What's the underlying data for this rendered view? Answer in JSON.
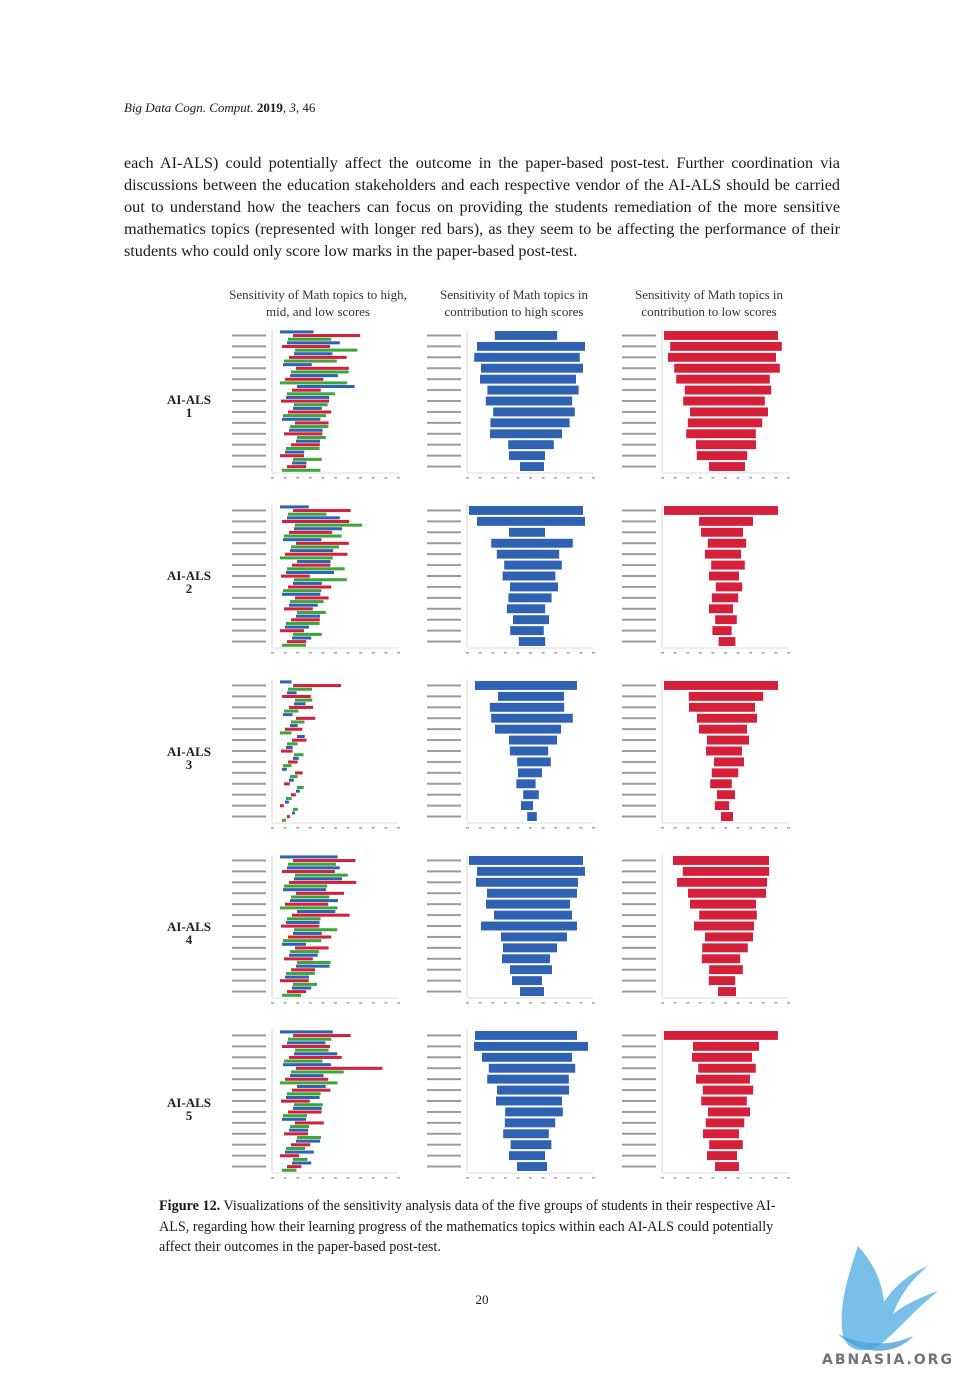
{
  "running_head": {
    "journal": "Big Data Cogn. Comput.",
    "year": "2019",
    "volume": "3",
    "article": "46"
  },
  "body_paragraph": "each AI-ALS) could potentially affect the outcome in the paper-based post-test. Further coordination via discussions between the education stakeholders and each respective vendor of the AI-ALS should be carried out to understand how the teachers can focus on providing the students remediation of the more sensitive mathematics topics (represented with longer red bars), as they seem to be affecting the performance of their students who could only score low marks in the paper-based post-test.",
  "column_headers": [
    "Sensitivity of Math topics to high, mid, and low scores",
    "Sensitivity of Math topics in contribution to high scores",
    "Sensitivity of Math topics in contribution to low scores"
  ],
  "row_labels": [
    {
      "name": "AI-ALS",
      "num": "1"
    },
    {
      "name": "AI-ALS",
      "num": "2"
    },
    {
      "name": "AI-ALS",
      "num": "3"
    },
    {
      "name": "AI-ALS",
      "num": "4"
    },
    {
      "name": "AI-ALS",
      "num": "5"
    }
  ],
  "colors": {
    "high": "#2f62b3",
    "mid": "#d4203a",
    "low": "#3da63a"
  },
  "chart_data": [
    {
      "type": "bar",
      "system": "AI-ALS 1",
      "panel": "high-mid-low",
      "series": [
        {
          "values": [
            0.35,
            0.55,
            0.4,
            0.3,
            0.5,
            0.6,
            0.45,
            0.3,
            0.4,
            0.35,
            0.25,
            0.2,
            0.15
          ]
        },
        {
          "values": [
            0.7,
            0.5,
            0.6,
            0.55,
            0.4,
            0.3,
            0.5,
            0.45,
            0.35,
            0.4,
            0.3,
            0.25,
            0.2
          ]
        },
        {
          "values": [
            0.45,
            0.65,
            0.55,
            0.6,
            0.7,
            0.5,
            0.35,
            0.45,
            0.4,
            0.3,
            0.35,
            0.3,
            0.4
          ]
        }
      ]
    },
    {
      "type": "bar",
      "system": "AI-ALS 1",
      "panel": "high",
      "values": [
        0.52,
        0.9,
        0.88,
        0.85,
        0.8,
        0.76,
        0.72,
        0.68,
        0.66,
        0.6,
        0.38,
        0.3,
        0.2
      ]
    },
    {
      "type": "bar",
      "system": "AI-ALS 1",
      "panel": "low",
      "values": [
        0.95,
        0.93,
        0.9,
        0.88,
        0.78,
        0.72,
        0.68,
        0.65,
        0.62,
        0.58,
        0.5,
        0.42,
        0.3
      ]
    },
    {
      "type": "bar",
      "system": "AI-ALS 2",
      "panel": "high-mid-low",
      "series": [
        {
          "values": [
            0.3,
            0.55,
            0.5,
            0.4,
            0.45,
            0.35,
            0.5,
            0.3,
            0.4,
            0.3,
            0.25,
            0.25,
            0.2
          ]
        },
        {
          "values": [
            0.6,
            0.7,
            0.45,
            0.55,
            0.65,
            0.4,
            0.3,
            0.45,
            0.35,
            0.3,
            0.3,
            0.25,
            0.2
          ]
        },
        {
          "values": [
            0.4,
            0.7,
            0.6,
            0.5,
            0.55,
            0.6,
            0.55,
            0.4,
            0.35,
            0.3,
            0.35,
            0.3,
            0.25
          ]
        }
      ]
    },
    {
      "type": "bar",
      "system": "AI-ALS 2",
      "panel": "high",
      "values": [
        0.95,
        0.9,
        0.3,
        0.68,
        0.52,
        0.48,
        0.44,
        0.4,
        0.36,
        0.32,
        0.3,
        0.28,
        0.22
      ]
    },
    {
      "type": "bar",
      "system": "AI-ALS 2",
      "panel": "low",
      "values": [
        0.95,
        0.45,
        0.35,
        0.32,
        0.3,
        0.28,
        0.25,
        0.22,
        0.22,
        0.2,
        0.18,
        0.16,
        0.14
      ]
    },
    {
      "type": "bar",
      "system": "AI-ALS 3",
      "panel": "high-mid-low",
      "series": [
        {
          "values": [
            0.12,
            0.1,
            0.12,
            0.1,
            0.08,
            0.08,
            0.07,
            0.06,
            0.05,
            0.05,
            0.04,
            0.04,
            0.03
          ]
        },
        {
          "values": [
            0.5,
            0.3,
            0.25,
            0.2,
            0.18,
            0.15,
            0.12,
            0.1,
            0.08,
            0.06,
            0.05,
            0.04,
            0.03
          ]
        },
        {
          "values": [
            0.25,
            0.18,
            0.15,
            0.14,
            0.12,
            0.11,
            0.1,
            0.09,
            0.08,
            0.07,
            0.06,
            0.05,
            0.04
          ]
        }
      ]
    },
    {
      "type": "bar",
      "system": "AI-ALS 3",
      "panel": "high",
      "values": [
        0.85,
        0.55,
        0.62,
        0.68,
        0.55,
        0.4,
        0.32,
        0.28,
        0.2,
        0.16,
        0.13,
        0.1,
        0.08
      ]
    },
    {
      "type": "bar",
      "system": "AI-ALS 3",
      "panel": "low",
      "values": [
        0.95,
        0.62,
        0.55,
        0.5,
        0.4,
        0.35,
        0.3,
        0.25,
        0.22,
        0.18,
        0.15,
        0.12,
        0.1
      ]
    },
    {
      "type": "bar",
      "system": "AI-ALS 4",
      "panel": "high-mid-low",
      "series": [
        {
          "values": [
            0.6,
            0.55,
            0.5,
            0.45,
            0.5,
            0.4,
            0.35,
            0.3,
            0.25,
            0.3,
            0.35,
            0.25,
            0.2
          ]
        },
        {
          "values": [
            0.65,
            0.55,
            0.7,
            0.5,
            0.45,
            0.6,
            0.4,
            0.45,
            0.35,
            0.3,
            0.25,
            0.3,
            0.2
          ]
        },
        {
          "values": [
            0.5,
            0.55,
            0.45,
            0.4,
            0.6,
            0.35,
            0.45,
            0.4,
            0.3,
            0.35,
            0.3,
            0.25,
            0.2
          ]
        }
      ]
    },
    {
      "type": "bar",
      "system": "AI-ALS 4",
      "panel": "high",
      "values": [
        0.95,
        0.9,
        0.85,
        0.75,
        0.7,
        0.65,
        0.8,
        0.55,
        0.45,
        0.4,
        0.35,
        0.25,
        0.2
      ]
    },
    {
      "type": "bar",
      "system": "AI-ALS 4",
      "panel": "low",
      "values": [
        0.8,
        0.72,
        0.75,
        0.65,
        0.55,
        0.48,
        0.5,
        0.4,
        0.38,
        0.32,
        0.28,
        0.22,
        0.15
      ]
    },
    {
      "type": "bar",
      "system": "AI-ALS 5",
      "panel": "high-mid-low",
      "series": [
        {
          "values": [
            0.55,
            0.4,
            0.45,
            0.5,
            0.35,
            0.3,
            0.35,
            0.3,
            0.25,
            0.2,
            0.25,
            0.3,
            0.2
          ]
        },
        {
          "values": [
            0.6,
            0.5,
            0.55,
            0.9,
            0.45,
            0.4,
            0.3,
            0.35,
            0.3,
            0.25,
            0.2,
            0.2,
            0.15
          ]
        },
        {
          "values": [
            0.45,
            0.35,
            0.4,
            0.55,
            0.6,
            0.35,
            0.3,
            0.25,
            0.2,
            0.25,
            0.2,
            0.15,
            0.15
          ]
        }
      ]
    },
    {
      "type": "bar",
      "system": "AI-ALS 5",
      "panel": "high",
      "values": [
        0.85,
        0.95,
        0.75,
        0.72,
        0.68,
        0.6,
        0.55,
        0.48,
        0.42,
        0.38,
        0.34,
        0.3,
        0.25
      ]
    },
    {
      "type": "bar",
      "system": "AI-ALS 5",
      "panel": "low",
      "values": [
        0.95,
        0.55,
        0.5,
        0.48,
        0.45,
        0.42,
        0.38,
        0.35,
        0.32,
        0.3,
        0.28,
        0.25,
        0.2
      ]
    }
  ],
  "caption": {
    "label": "Figure 12.",
    "text": "Visualizations of the sensitivity analysis data of the five groups of students in their respective AI-ALS, regarding how their learning progress of the mathematics topics within each AI-ALS could potentially affect their outcomes in the paper-based post-test."
  },
  "page_number": "20",
  "watermark_text": "ABNASIA.ORG"
}
